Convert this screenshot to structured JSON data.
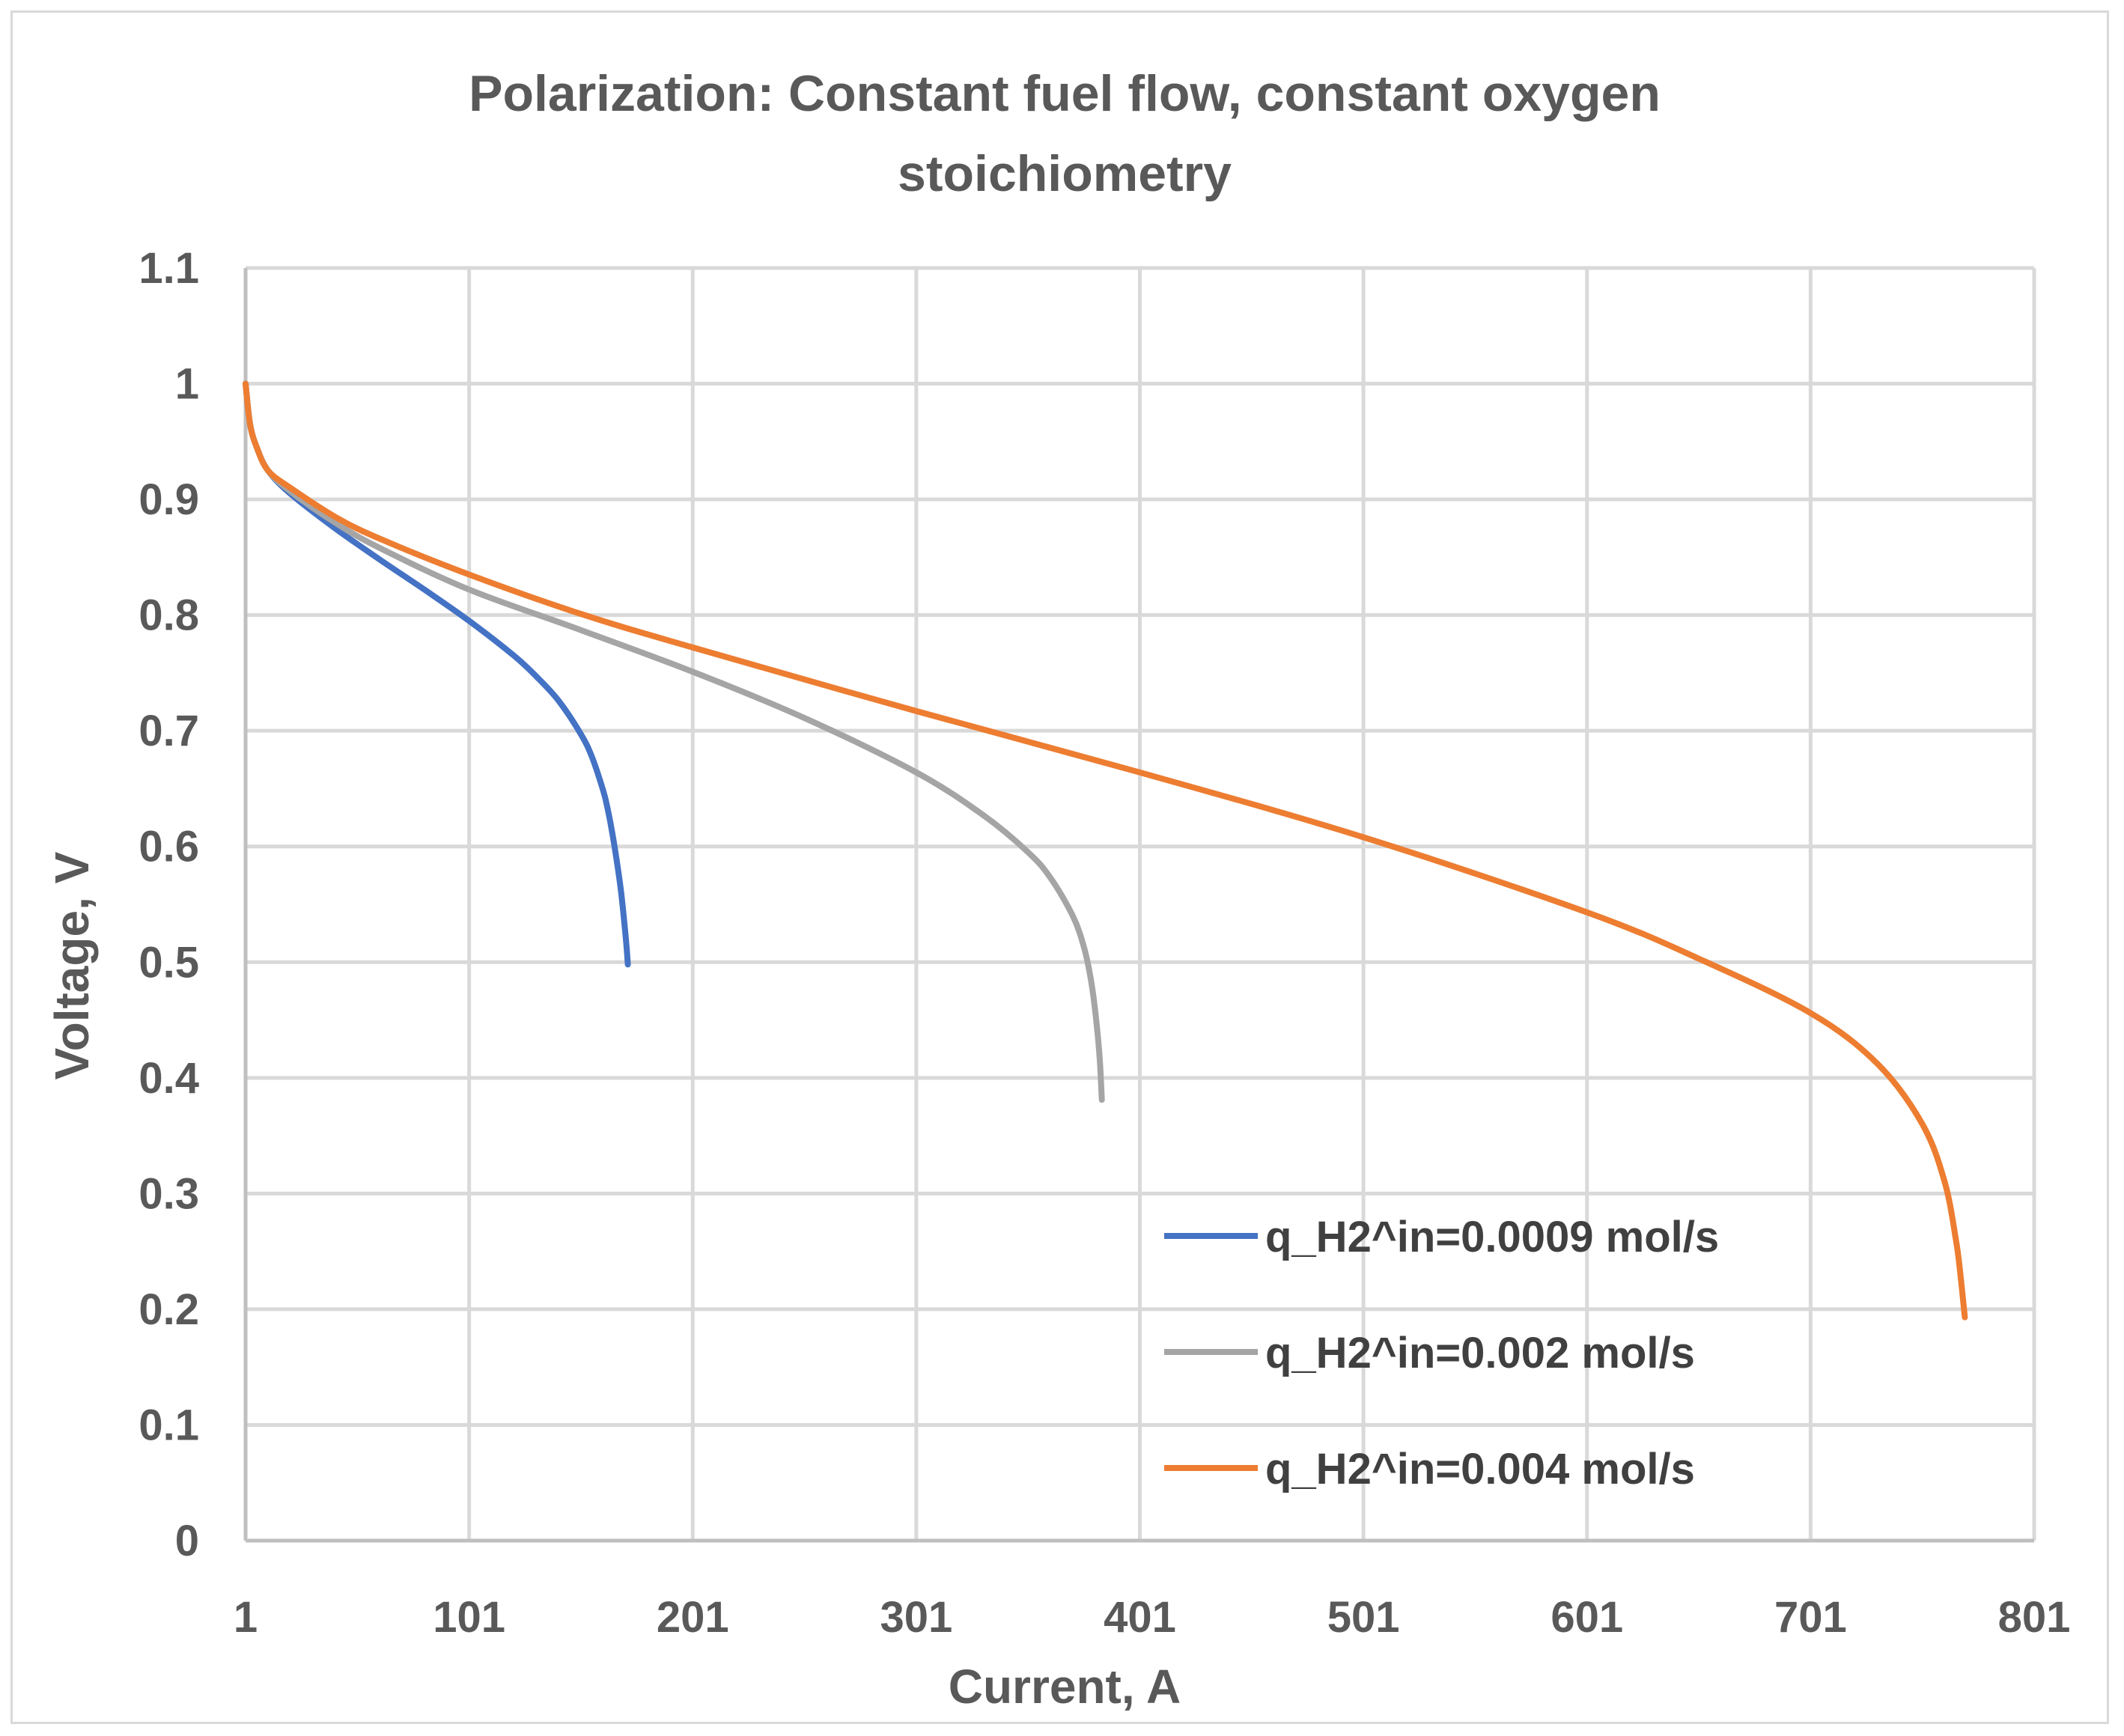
{
  "chart_data": {
    "type": "line",
    "title_lines": [
      "Polarization: Constant fuel flow, constant oxygen",
      "stoichiometry"
    ],
    "xlabel": "Current, A",
    "ylabel": "Voltage, V",
    "xlim": [
      1,
      801
    ],
    "ylim": [
      0,
      1.1
    ],
    "x_ticks": [
      1,
      101,
      201,
      301,
      401,
      501,
      601,
      701,
      801
    ],
    "x_tick_labels": [
      "1",
      "101",
      "201",
      "301",
      "401",
      "501",
      "601",
      "701",
      "801"
    ],
    "y_ticks": [
      0,
      0.1,
      0.2,
      0.3,
      0.4,
      0.5,
      0.6,
      0.7,
      0.8,
      0.9,
      1,
      1.1
    ],
    "y_tick_labels": [
      "0",
      "0.1",
      "0.2",
      "0.3",
      "0.4",
      "0.5",
      "0.6",
      "0.7",
      "0.8",
      "0.9",
      "1",
      "1.1"
    ],
    "grid": true,
    "legend_position": "bottom-right",
    "series": [
      {
        "name": "q_H2^in=0.0009 mol/s",
        "color": "#4472c4",
        "x": [
          1,
          3,
          6,
          11,
          21,
          41,
          61,
          81,
          101,
          121,
          131,
          141,
          151,
          156,
          161,
          163,
          165,
          167,
          169,
          171,
          172
        ],
        "y": [
          1.0,
          0.965,
          0.945,
          0.925,
          0.905,
          0.875,
          0.848,
          0.822,
          0.795,
          0.765,
          0.747,
          0.726,
          0.697,
          0.677,
          0.648,
          0.632,
          0.612,
          0.588,
          0.56,
          0.522,
          0.498
        ]
      },
      {
        "name": "q_H2^in=0.002 mol/s",
        "color": "#a5a5a5",
        "x": [
          1,
          3,
          6,
          11,
          21,
          41,
          61,
          101,
          151,
          201,
          251,
          301,
          331,
          351,
          361,
          371,
          376,
          379,
          381,
          383,
          384
        ],
        "y": [
          1.0,
          0.965,
          0.945,
          0.925,
          0.907,
          0.88,
          0.858,
          0.822,
          0.787,
          0.751,
          0.711,
          0.664,
          0.627,
          0.595,
          0.573,
          0.54,
          0.513,
          0.486,
          0.458,
          0.418,
          0.381
        ]
      },
      {
        "name": "q_H2^in=0.004 mol/s",
        "color": "#ed7d31",
        "x": [
          1,
          3,
          6,
          11,
          21,
          41,
          61,
          101,
          151,
          201,
          301,
          401,
          501,
          601,
          651,
          701,
          731,
          751,
          761,
          766,
          768,
          770
        ],
        "y": [
          1.0,
          0.965,
          0.945,
          0.925,
          0.91,
          0.885,
          0.866,
          0.835,
          0.801,
          0.772,
          0.717,
          0.664,
          0.608,
          0.543,
          0.503,
          0.456,
          0.412,
          0.36,
          0.31,
          0.26,
          0.23,
          0.193
        ]
      }
    ]
  }
}
